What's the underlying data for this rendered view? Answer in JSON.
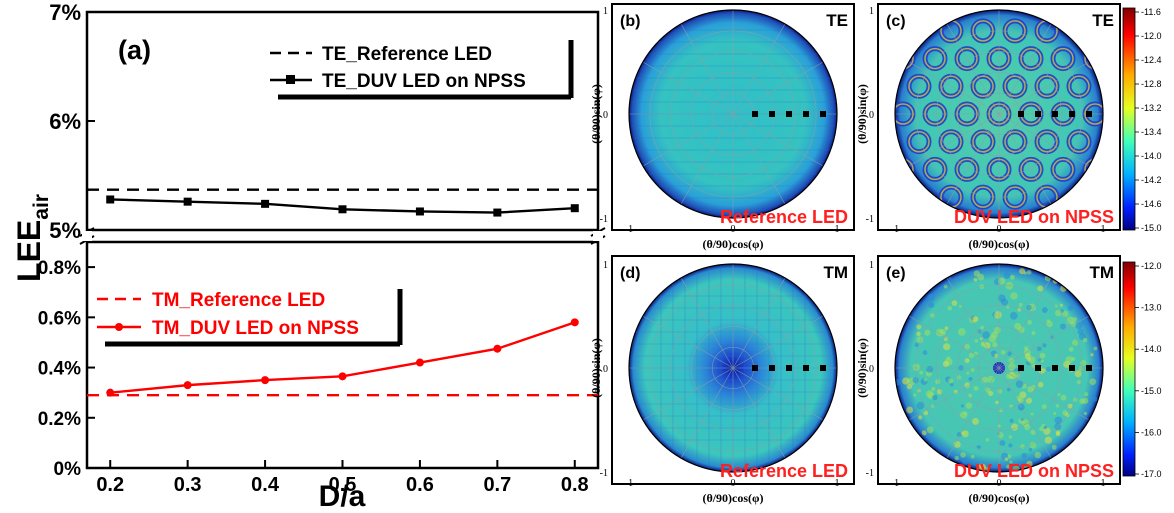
{
  "chart_data": [
    {
      "id": "a",
      "type": "line",
      "panel_label": "(a)",
      "xlabel": "D/a",
      "ylabel_main": "LEE",
      "ylabel_sub": "air",
      "xlim": [
        0.17,
        0.83
      ],
      "xticks": [
        0.2,
        0.3,
        0.4,
        0.5,
        0.6,
        0.7,
        0.8
      ],
      "xtick_labels": [
        "0.2",
        "0.3",
        "0.4",
        "0.5",
        "0.6",
        "0.7",
        "0.8"
      ],
      "upper": {
        "ylim": [
          5.0,
          7.0
        ],
        "yticks": [
          5,
          6,
          7
        ],
        "ytick_labels": [
          "5%",
          "6%",
          "7%"
        ],
        "series": [
          {
            "name": "TE_Reference LED",
            "style": "dashed",
            "color": "#000000",
            "x": [
              0.17,
              0.83
            ],
            "y": [
              5.37,
              5.37
            ]
          },
          {
            "name": "TE_DUV LED on NPSS",
            "style": "solid-marker",
            "color": "#000000",
            "x": [
              0.2,
              0.3,
              0.4,
              0.5,
              0.6,
              0.7,
              0.8
            ],
            "y": [
              5.28,
              5.26,
              5.24,
              5.19,
              5.17,
              5.16,
              5.2
            ]
          }
        ]
      },
      "lower": {
        "ylim": [
          0.0,
          0.9
        ],
        "yticks": [
          0.0,
          0.2,
          0.4,
          0.6,
          0.8
        ],
        "ytick_labels": [
          "0%",
          "0.2%",
          "0.4%",
          "0.6%",
          "0.8%"
        ],
        "series": [
          {
            "name": "TM_Reference LED",
            "style": "dashed",
            "color": "#ff0000",
            "x": [
              0.17,
              0.83
            ],
            "y": [
              0.29,
              0.29
            ]
          },
          {
            "name": "TM_DUV LED on NPSS",
            "style": "solid-marker",
            "color": "#ff0000",
            "x": [
              0.2,
              0.3,
              0.4,
              0.5,
              0.6,
              0.7,
              0.8
            ],
            "y": [
              0.3,
              0.33,
              0.35,
              0.365,
              0.42,
              0.475,
              0.58
            ]
          }
        ]
      }
    },
    {
      "id": "b",
      "type": "heatmap",
      "panel_label": "(b)",
      "mode_label": "TE",
      "caption": "Reference LED",
      "xlabel": "(θ/90)cos(φ)",
      "ylabel": "(θ/90)sin(φ)",
      "xtick_labels": [
        "-1",
        "0",
        "1"
      ],
      "ytick_labels": [
        "1",
        "0",
        "-1"
      ],
      "pattern": "uniform",
      "marker_count": 5
    },
    {
      "id": "c",
      "type": "heatmap",
      "panel_label": "(c)",
      "mode_label": "TE",
      "caption": "DUV LED on NPSS",
      "xlabel": "(θ/90)cos(φ)",
      "ylabel": "(θ/90)sin(φ)",
      "xtick_labels": [
        "-1",
        "0",
        "1"
      ],
      "ytick_labels": [
        "1",
        "0",
        "-1"
      ],
      "pattern": "rings",
      "marker_count": 5
    },
    {
      "id": "d",
      "type": "heatmap",
      "panel_label": "(d)",
      "mode_label": "TM",
      "caption": "Reference LED",
      "xlabel": "(θ/90)cos(φ)",
      "ylabel": "(θ/90)sin(φ)",
      "xtick_labels": [
        "-1",
        "0",
        "1"
      ],
      "ytick_labels": [
        "1",
        "0",
        "-1"
      ],
      "pattern": "center-dark",
      "marker_count": 5
    },
    {
      "id": "e",
      "type": "heatmap",
      "panel_label": "(e)",
      "mode_label": "TM",
      "caption": "DUV LED on NPSS",
      "xlabel": "(θ/90)cos(φ)",
      "ylabel": "(θ/90)sin(φ)",
      "xtick_labels": [
        "-1",
        "0",
        "1"
      ],
      "ytick_labels": [
        "1",
        "0",
        "-1"
      ],
      "pattern": "speckle",
      "marker_count": 5
    },
    {
      "id": "cb-top",
      "type": "colorbar",
      "tick_labels": [
        "-11.6",
        "-12.0",
        "-12.4",
        "-12.8",
        "-13.2",
        "-13.4",
        "-14.0",
        "-14.2",
        "-14.6",
        "-15.0"
      ]
    },
    {
      "id": "cb-bottom",
      "type": "colorbar",
      "tick_labels": [
        "-12.0",
        "-13.0",
        "-14.0",
        "-15.0",
        "-16.0",
        "-17.0"
      ]
    }
  ],
  "colors": {
    "te_series": "#000000",
    "tm_series": "#ff0000",
    "polar_base": "#2fb8c9",
    "caption": "#ff2020"
  }
}
